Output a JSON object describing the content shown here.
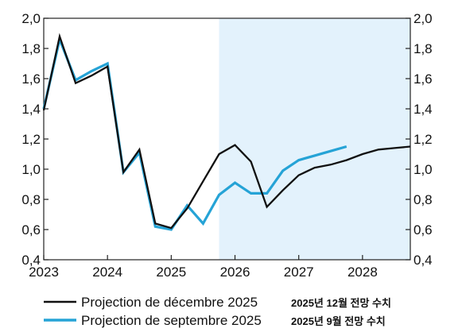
{
  "chart_data": {
    "type": "line",
    "title": "",
    "xlabel": "",
    "ylabel": "",
    "xlim": [
      2023.0,
      2028.75
    ],
    "ylim": [
      0.4,
      2.0
    ],
    "yticks": [
      "0,4",
      "0,6",
      "0,8",
      "1,0",
      "1,2",
      "1,4",
      "1,6",
      "1,8",
      "2,0"
    ],
    "ytick_values": [
      0.4,
      0.6,
      0.8,
      1.0,
      1.2,
      1.4,
      1.6,
      1.8,
      2.0
    ],
    "xticks": [
      "2023",
      "2024",
      "2025",
      "2026",
      "2027",
      "2028"
    ],
    "xtick_values": [
      2023,
      2024,
      2025,
      2026,
      2027,
      2028
    ],
    "right_axis": true,
    "grid": false,
    "projection_shade": {
      "from": 2025.75,
      "to": 2028.75,
      "color": "#e3f2fc"
    },
    "legend_position": "bottom-left",
    "series": [
      {
        "name": "Projection de décembre 2025",
        "color": "#111111",
        "x": [
          2023.0,
          2023.25,
          2023.5,
          2023.75,
          2024.0,
          2024.25,
          2024.5,
          2024.75,
          2025.0,
          2025.25,
          2025.5,
          2025.75,
          2026.0,
          2026.25,
          2026.5,
          2026.75,
          2027.0,
          2027.25,
          2027.5,
          2027.75,
          2028.0,
          2028.25,
          2028.5,
          2028.75
        ],
        "y": [
          1.39,
          1.88,
          1.57,
          1.62,
          1.68,
          0.98,
          1.13,
          0.64,
          0.61,
          0.74,
          0.92,
          1.1,
          1.16,
          1.05,
          0.75,
          0.86,
          0.96,
          1.01,
          1.03,
          1.06,
          1.1,
          1.13,
          1.14,
          1.15
        ]
      },
      {
        "name": "Projection de septembre 2025",
        "color": "#25a3d6",
        "x": [
          2023.0,
          2023.25,
          2023.5,
          2023.75,
          2024.0,
          2024.25,
          2024.5,
          2024.75,
          2025.0,
          2025.25,
          2025.5,
          2025.75,
          2026.0,
          2026.25,
          2026.5,
          2026.75,
          2027.0,
          2027.25,
          2027.5,
          2027.75
        ],
        "y": [
          1.4,
          1.86,
          1.59,
          1.65,
          1.7,
          0.98,
          1.11,
          0.62,
          0.6,
          0.76,
          0.64,
          0.83,
          0.91,
          0.84,
          0.84,
          0.99,
          1.06,
          1.09,
          1.12,
          1.15
        ]
      }
    ],
    "legend": [
      {
        "label": "Projection de décembre 2025",
        "note": "2025년 12월 전망 수치",
        "color": "#111111"
      },
      {
        "label": "Projection de septembre 2025",
        "note": "2025년 9월 전망 수치",
        "color": "#25a3d6"
      }
    ]
  }
}
